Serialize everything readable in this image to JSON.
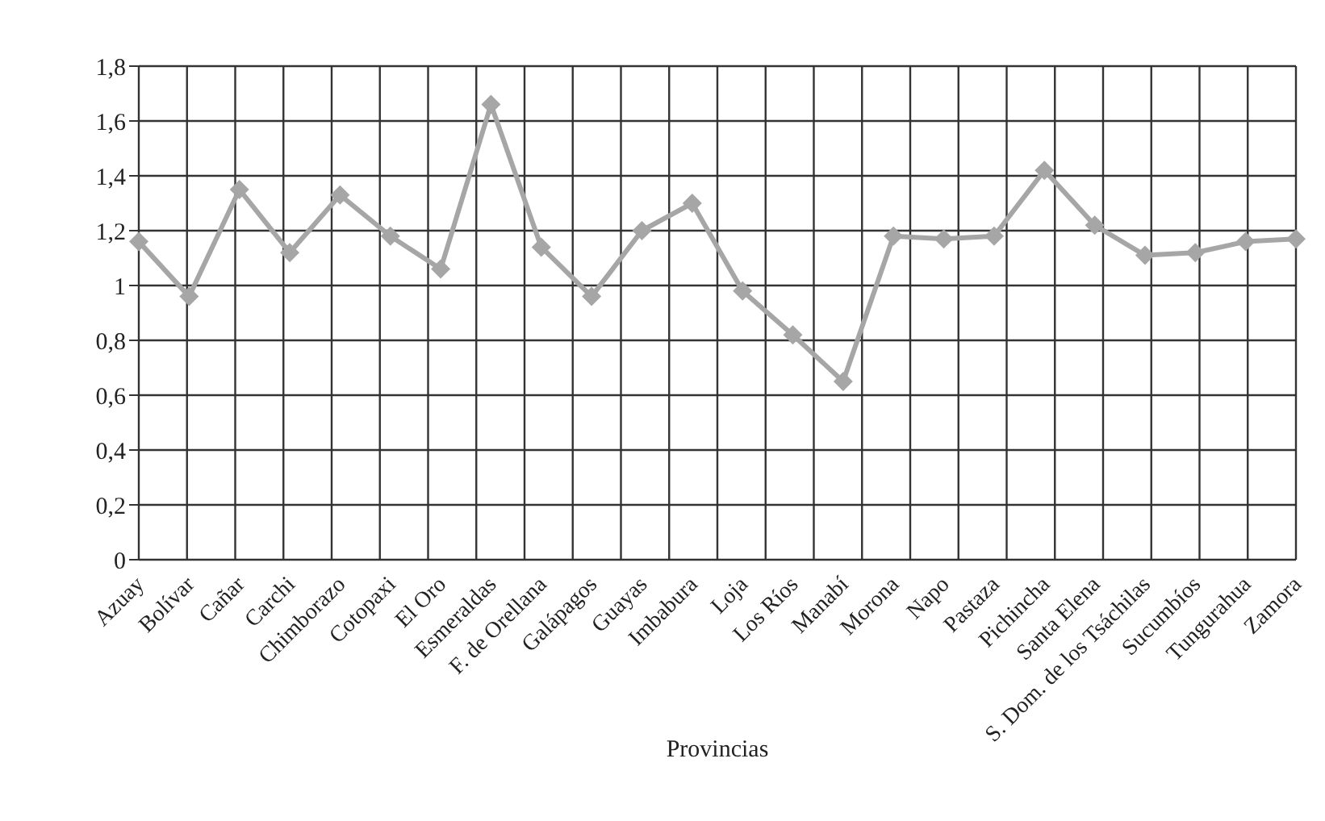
{
  "chart_data": {
    "type": "line",
    "xlabel": "Provincias",
    "categories": [
      "Azuay",
      "Bolívar",
      "Cañar",
      "Carchi",
      "Chimborazo",
      "Cotopaxi",
      "El Oro",
      "Esmeraldas",
      "F. de Orellana",
      "Galápagos",
      "Guayas",
      "Imbabura",
      "Loja",
      "Los Ríos",
      "Manabí",
      "Morona",
      "Napo",
      "Pastaza",
      "Pichincha",
      "Santa Elena",
      "S. Dom. de los Tsáchilas",
      "Sucumbíos",
      "Tungurahua",
      "Zamora"
    ],
    "series": [
      {
        "color": "#a6a6a6",
        "values": [
          1.16,
          0.96,
          1.35,
          1.12,
          1.33,
          1.18,
          1.06,
          1.66,
          1.14,
          0.96,
          1.2,
          1.3,
          0.98,
          0.82,
          0.65,
          1.18,
          1.17,
          1.18,
          1.42,
          1.22,
          1.11,
          1.12,
          1.16,
          1.17
        ]
      }
    ],
    "ylim": [
      0,
      1.8
    ],
    "yticks": [
      0,
      {
        "value": 0.2,
        "label": "0,2"
      },
      {
        "value": 0.4,
        "label": "0,4"
      },
      {
        "value": 0.6,
        "label": "0,6"
      },
      {
        "value": 0.8,
        "label": "0,8"
      },
      1,
      {
        "value": 1.2,
        "label": "1,2"
      },
      {
        "value": 1.4,
        "label": "1,4"
      },
      {
        "value": 1.6,
        "label": "1,6"
      },
      {
        "value": 1.8,
        "label": "1,8"
      }
    ],
    "grid": true,
    "marker": "diamond"
  }
}
